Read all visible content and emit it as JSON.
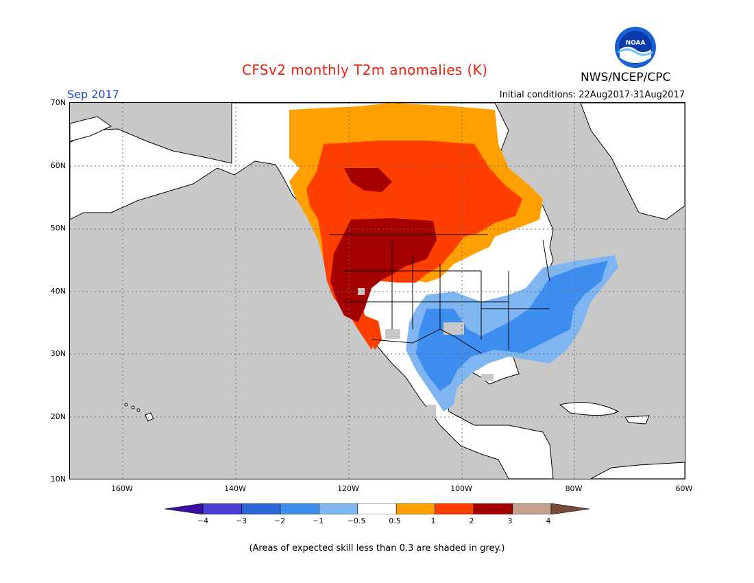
{
  "header": {
    "title": "CFSv2 monthly T2m anomalies (K)",
    "month": "Sep 2017",
    "initial_conditions": "Initial conditions: 22Aug2017-31Aug2017",
    "agency": "NWS/NCEP/CPC",
    "logo_text": "NOAA"
  },
  "axes": {
    "lat_labels": [
      "70N",
      "60N",
      "50N",
      "40N",
      "30N",
      "20N",
      "10N"
    ],
    "lon_labels": [
      "160W",
      "140W",
      "120W",
      "100W",
      "80W",
      "60W"
    ]
  },
  "colorbar": {
    "labels": [
      "−4",
      "−3",
      "−2",
      "−1",
      "−0.5",
      "0.5",
      "1",
      "2",
      "3",
      "4"
    ],
    "colors": [
      "#3a10a0",
      "#4a3ed0",
      "#2a66d8",
      "#3e8ef0",
      "#7fb6f2",
      "#ffffff",
      "#ff9f00",
      "#ff3f00",
      "#a50000",
      "#c4a08e",
      "#7a4a38"
    ]
  },
  "legend_note": "(Areas of expected skill less than 0.3 are shaded in grey.)",
  "palette": {
    "background": "#c8c8c8",
    "land_neutral": "#ffffff",
    "warm_1": "#ff9f00",
    "warm_2": "#ff3f00",
    "warm_3": "#a50000",
    "cool_1": "#7fb6f2",
    "cool_2": "#3e8ef0"
  }
}
